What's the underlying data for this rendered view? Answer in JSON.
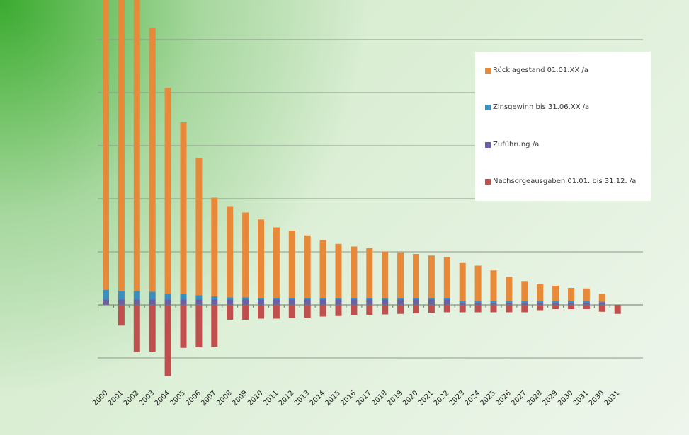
{
  "chart_data": {
    "type": "bar",
    "stacked": true,
    "title": "",
    "xlabel": "",
    "ylabel": "",
    "grid": true,
    "legend_position": "right",
    "categories": [
      "2000",
      "2001",
      "2002",
      "2003",
      "2004",
      "2005",
      "2006",
      "2007",
      "2008",
      "2009",
      "2010",
      "2011",
      "2012",
      "2013",
      "2014",
      "2015",
      "2016",
      "2017",
      "2018",
      "2019",
      "2020",
      "2021",
      "2022",
      "2023",
      "2024",
      "2025",
      "2026",
      "2027",
      "2028",
      "2029",
      "2030",
      "2031",
      "2030",
      "2031"
    ],
    "series": [
      {
        "name": "Rücklagestand 01.01.XX /a",
        "color": "#e8893a",
        "values": [
          57,
          57,
          55.8,
          49.7,
          38.8,
          32.4,
          25.9,
          18.6,
          17.2,
          16.0,
          14.8,
          13.3,
          12.7,
          11.8,
          10.9,
          10.2,
          9.7,
          9.4,
          8.7,
          8.6,
          8.3,
          8.0,
          7.7,
          7.2,
          6.7,
          5.8,
          4.6,
          3.8,
          3.2,
          2.9,
          2.5,
          2.4,
          1.5,
          0
        ]
      },
      {
        "name": "Zinsgewinn bis 31.06.XX /a",
        "color": "#3a8fc0",
        "values": [
          1.8,
          1.7,
          1.6,
          1.5,
          1.1,
          1.0,
          0.8,
          0.6,
          0.4,
          0.4,
          0.3,
          0.3,
          0.3,
          0.3,
          0.3,
          0.3,
          0.3,
          0.3,
          0.3,
          0.3,
          0.3,
          0.3,
          0.3,
          0.2,
          0.2,
          0.2,
          0.2,
          0.2,
          0.2,
          0.2,
          0.2,
          0.2,
          0.1,
          0
        ]
      },
      {
        "name": "Zuführung /a",
        "color": "#6e5ea8",
        "values": [
          1.0,
          1.0,
          1.0,
          1.0,
          1.0,
          1.0,
          1.0,
          1.0,
          1.0,
          1.0,
          1.0,
          1.0,
          1.0,
          1.0,
          1.0,
          1.0,
          1.0,
          1.0,
          1.0,
          1.0,
          1.0,
          1.0,
          1.0,
          0.5,
          0.5,
          0.5,
          0.5,
          0.5,
          0.5,
          0.5,
          0.5,
          0.5,
          0.5,
          0
        ]
      },
      {
        "name": "Nachsorgeausgaben  01.01. bis 31.12. /a",
        "color": "#c0504d",
        "values": [
          0,
          -3.9,
          -8.9,
          -8.8,
          -13.4,
          -8.1,
          -8.0,
          -7.9,
          -2.8,
          -2.8,
          -2.6,
          -2.6,
          -2.4,
          -2.4,
          -2.2,
          -2.1,
          -2.0,
          -1.9,
          -1.8,
          -1.7,
          -1.6,
          -1.5,
          -1.4,
          -1.4,
          -1.4,
          -1.4,
          -1.4,
          -1.4,
          -1.0,
          -0.8,
          -0.8,
          -0.8,
          -1.3,
          -1.7
        ]
      }
    ],
    "ylim": [
      -15,
      57
    ]
  }
}
